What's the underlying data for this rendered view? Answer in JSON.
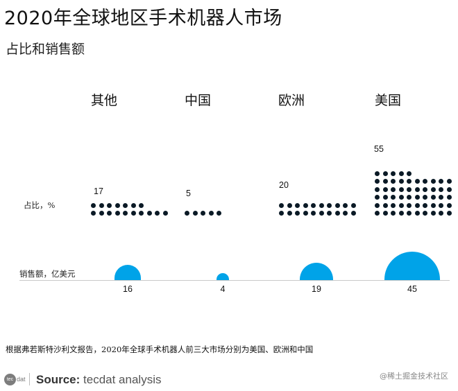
{
  "header": {
    "title": "2020年全球地区手术机器人市场",
    "subtitle": "占比和销售额"
  },
  "row_labels": {
    "share": "占比，%",
    "sales": "销售额，亿美元"
  },
  "chart_data": {
    "type": "dot-matrix + semicircle",
    "title": "2020年全球地区手术机器人市场",
    "subtitle": "占比和销售额",
    "categories": [
      "其他",
      "中国",
      "欧洲",
      "美国"
    ],
    "series": [
      {
        "name": "占比，%",
        "values": [
          17,
          5,
          20,
          55
        ],
        "encoding": "dot count (1 dot = 1%)"
      },
      {
        "name": "销售额，亿美元",
        "values": [
          16,
          4,
          19,
          45
        ],
        "encoding": "semicircle size"
      }
    ],
    "colors": {
      "dots": "#0b1a26",
      "semicircles": "#00a3e8",
      "baseline": "#c8c8c8"
    }
  },
  "categories": [
    {
      "label": "其他",
      "share": "17",
      "sales": "16"
    },
    {
      "label": "中国",
      "share": "5",
      "sales": "4"
    },
    {
      "label": "欧洲",
      "share": "20",
      "sales": "19"
    },
    {
      "label": "美国",
      "share": "55",
      "sales": "45"
    }
  ],
  "footer": {
    "note": "根据弗若斯特沙利文报告，2020年全球手术机器人前三大市场分别为美国、欧洲和中国",
    "logo_circle": "tec",
    "logo_text": "dat",
    "source_label": "Source:",
    "source_value": " tecdat analysis",
    "watermark": "@稀土掘金技术社区"
  }
}
